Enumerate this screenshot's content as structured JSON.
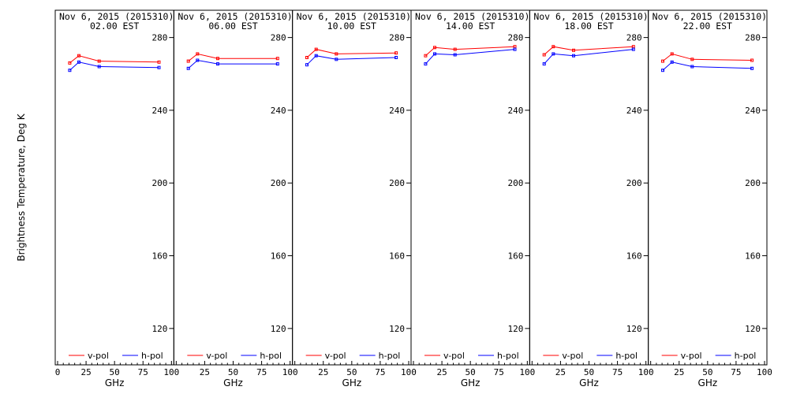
{
  "chart_data": {
    "type": "line",
    "ylabel": "Brightness Temperature, Deg K",
    "xlabel": "GHz",
    "ylim": [
      100,
      295
    ],
    "yticks": [
      120,
      160,
      200,
      240,
      280
    ],
    "xlim": [
      0,
      100
    ],
    "xticks": [
      0,
      25,
      50,
      75,
      100
    ],
    "x": [
      10.65,
      18.7,
      36.5,
      89
    ],
    "legend": [
      "v-pol",
      "h-pol"
    ],
    "legend_position": "bottom",
    "colors": {
      "v-pol": "#ff0000",
      "h-pol": "#0000ff"
    },
    "panels": [
      {
        "date": "Nov  6, 2015 (2015310)",
        "time": "02.00 EST",
        "series": [
          {
            "name": "v-pol",
            "values": [
              266,
              270,
              267,
              266.5
            ]
          },
          {
            "name": "h-pol",
            "values": [
              262,
              266.5,
              264,
              263.5
            ]
          }
        ]
      },
      {
        "date": "Nov  6, 2015 (2015310)",
        "time": "06.00 EST",
        "series": [
          {
            "name": "v-pol",
            "values": [
              267,
              271,
              268.5,
              268.5
            ]
          },
          {
            "name": "h-pol",
            "values": [
              263,
              267.5,
              265.5,
              265.5
            ]
          }
        ]
      },
      {
        "date": "Nov  6, 2015 (2015310)",
        "time": "10.00 EST",
        "series": [
          {
            "name": "v-pol",
            "values": [
              269,
              273.5,
              271,
              271.5
            ]
          },
          {
            "name": "h-pol",
            "values": [
              265,
              270,
              268,
              269
            ]
          }
        ]
      },
      {
        "date": "Nov  6, 2015 (2015310)",
        "time": "14.00 EST",
        "series": [
          {
            "name": "v-pol",
            "values": [
              270,
              274.5,
              273.5,
              275
            ]
          },
          {
            "name": "h-pol",
            "values": [
              265.5,
              271,
              270.5,
              273.5
            ]
          }
        ]
      },
      {
        "date": "Nov  6, 2015 (2015310)",
        "time": "18.00 EST",
        "series": [
          {
            "name": "v-pol",
            "values": [
              270.5,
              275,
              273,
              275
            ]
          },
          {
            "name": "h-pol",
            "values": [
              265.5,
              271,
              270,
              273.5
            ]
          }
        ]
      },
      {
        "date": "Nov  6, 2015 (2015310)",
        "time": "22.00 EST",
        "series": [
          {
            "name": "v-pol",
            "values": [
              267,
              271,
              268,
              267.5
            ]
          },
          {
            "name": "h-pol",
            "values": [
              262,
              266.5,
              264,
              263
            ]
          }
        ]
      }
    ]
  }
}
